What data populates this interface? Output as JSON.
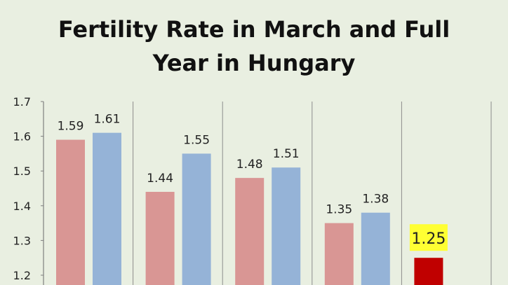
{
  "chart_data": {
    "type": "bar",
    "title": "Fertility Rate in March and Full\nYear in Hungary",
    "xlabel": "",
    "ylabel": "",
    "ylim": [
      1.18,
      1.7
    ],
    "yticks": [
      1.2,
      1.3,
      1.4,
      1.5,
      1.6,
      1.7
    ],
    "ytick_labels": [
      "1.2",
      "1.3",
      "1.4",
      "1.5",
      "1.6",
      "1.7"
    ],
    "grid": "vertical separators between groups",
    "legend": "none visible",
    "groups": 5,
    "series": [
      {
        "values": [
          1.59,
          1.44,
          1.48,
          1.35,
          null
        ],
        "labels": [
          "1.59",
          "1.44",
          "1.48",
          "1.35",
          ""
        ],
        "color": "#d99694"
      },
      {
        "values": [
          1.61,
          1.55,
          1.51,
          1.38,
          null
        ],
        "labels": [
          "1.61",
          "1.55",
          "1.51",
          "1.38",
          ""
        ],
        "color": "#95b3d7"
      }
    ],
    "highlight": {
      "group": 5,
      "value": 1.25,
      "label": "1.25",
      "color": "#c00000",
      "label_background": "#ffff33"
    }
  }
}
